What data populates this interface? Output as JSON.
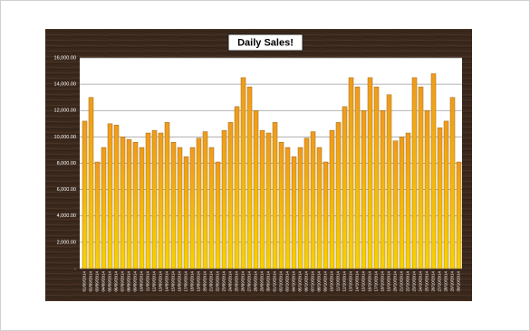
{
  "chart_data": {
    "type": "bar",
    "title": "Daily Sales!",
    "categories": [
      "01/09/2014",
      "02/09/2014",
      "03/09/2014",
      "04/09/2014",
      "05/09/2014",
      "06/09/2014",
      "07/09/2014",
      "08/09/2014",
      "09/09/2014",
      "10/09/2014",
      "11/09/2014",
      "12/09/2014",
      "13/09/2014",
      "14/09/2014",
      "15/09/2014",
      "16/09/2014",
      "17/09/2014",
      "18/09/2014",
      "19/09/2014",
      "20/09/2014",
      "21/09/2014",
      "22/09/2014",
      "23/09/2014",
      "24/09/2014",
      "25/09/2014",
      "26/09/2014",
      "27/09/2014",
      "28/09/2014",
      "29/09/2014",
      "30/09/2014",
      "01/10/2014",
      "02/10/2014",
      "03/10/2014",
      "04/10/2014",
      "05/10/2014",
      "06/10/2014",
      "07/10/2014",
      "08/10/2014",
      "09/10/2014",
      "10/10/2014",
      "11/10/2014",
      "12/10/2014",
      "13/10/2014",
      "14/10/2014",
      "15/10/2014",
      "16/10/2014",
      "17/10/2014",
      "18/10/2014",
      "19/10/2014",
      "20/10/2014",
      "21/10/2014",
      "22/10/2014",
      "23/10/2014",
      "24/10/2014",
      "25/10/2014",
      "26/10/2014",
      "27/10/2014",
      "28/10/2014",
      "29/10/2014",
      "30/10/2014"
    ],
    "values": [
      11200,
      13000,
      8100,
      9200,
      11000,
      10900,
      10000,
      9800,
      9600,
      9200,
      10300,
      10500,
      10300,
      11100,
      9600,
      9200,
      8500,
      9200,
      9900,
      10400,
      9200,
      8100,
      10500,
      11100,
      12300,
      14500,
      13800,
      12000,
      10500,
      10300,
      11100,
      9600,
      9200,
      8500,
      9200,
      9900,
      10400,
      9200,
      8100,
      10500,
      11100,
      12300,
      14500,
      13800,
      12000,
      14500,
      13800,
      12000,
      13200,
      9700,
      10000,
      10300,
      14500,
      13800,
      12000,
      14800,
      10700,
      11200,
      13000,
      8100
    ],
    "color": "#ef9a1c",
    "ylim": [
      0,
      16000
    ],
    "yticks": [
      {
        "value": 0,
        "label": "-"
      },
      {
        "value": 2000,
        "label": "2,000.00"
      },
      {
        "value": 4000,
        "label": "4,000.00"
      },
      {
        "value": 6000,
        "label": "6,000.00"
      },
      {
        "value": 8000,
        "label": "8,000.00"
      },
      {
        "value": 10000,
        "label": "10,000.00"
      },
      {
        "value": 12000,
        "label": "12,000.00"
      },
      {
        "value": 14000,
        "label": "14,000.00"
      },
      {
        "value": 16000,
        "label": "16,000.00"
      }
    ],
    "grid": true
  }
}
